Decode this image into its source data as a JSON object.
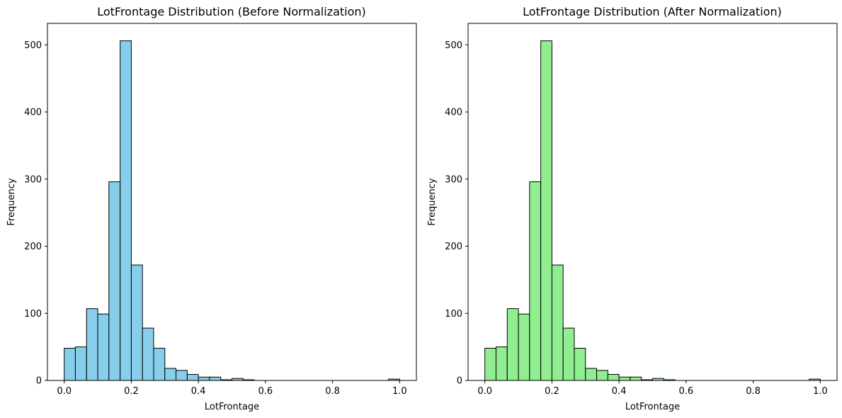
{
  "chart_data": [
    {
      "type": "bar",
      "title": "LotFrontage Distribution (Before Normalization)",
      "xlabel": "LotFrontage",
      "ylabel": "Frequency",
      "xlim": [
        -0.05,
        1.05
      ],
      "ylim": [
        0,
        532
      ],
      "xticks": [
        0.0,
        0.2,
        0.4,
        0.6,
        0.8,
        1.0
      ],
      "xtick_labels": [
        "0.0",
        "0.2",
        "0.4",
        "0.6",
        "0.8",
        "1.0"
      ],
      "yticks": [
        0,
        100,
        200,
        300,
        400,
        500
      ],
      "ytick_labels": [
        "0",
        "100",
        "200",
        "300",
        "400",
        "500"
      ],
      "bar_color": "#87ceeb",
      "edge_color": "#000000",
      "bins": {
        "x": [
          0.0,
          0.0333,
          0.0667,
          0.1,
          0.1333,
          0.1667,
          0.2,
          0.2333,
          0.2667,
          0.3,
          0.3333,
          0.3667,
          0.4,
          0.4333,
          0.4667,
          0.5,
          0.5333,
          0.5667,
          0.6,
          0.6333,
          0.6667,
          0.7,
          0.7333,
          0.7667,
          0.8,
          0.8333,
          0.8667,
          0.9,
          0.9333,
          0.9667
        ],
        "values": [
          48,
          50,
          107,
          99,
          296,
          506,
          172,
          78,
          48,
          18,
          15,
          9,
          5,
          5,
          1,
          3,
          1,
          0,
          0,
          0,
          0,
          0,
          0,
          0,
          0,
          0,
          0,
          0,
          0,
          2
        ],
        "width": 0.0333
      }
    },
    {
      "type": "bar",
      "title": "LotFrontage Distribution (After Normalization)",
      "xlabel": "LotFrontage",
      "ylabel": "Frequency",
      "xlim": [
        -0.05,
        1.05
      ],
      "ylim": [
        0,
        532
      ],
      "xticks": [
        0.0,
        0.2,
        0.4,
        0.6,
        0.8,
        1.0
      ],
      "xtick_labels": [
        "0.0",
        "0.2",
        "0.4",
        "0.6",
        "0.8",
        "1.0"
      ],
      "yticks": [
        0,
        100,
        200,
        300,
        400,
        500
      ],
      "ytick_labels": [
        "0",
        "100",
        "200",
        "300",
        "400",
        "500"
      ],
      "bar_color": "#90ee90",
      "edge_color": "#000000",
      "bins": {
        "x": [
          0.0,
          0.0333,
          0.0667,
          0.1,
          0.1333,
          0.1667,
          0.2,
          0.2333,
          0.2667,
          0.3,
          0.3333,
          0.3667,
          0.4,
          0.4333,
          0.4667,
          0.5,
          0.5333,
          0.5667,
          0.6,
          0.6333,
          0.6667,
          0.7,
          0.7333,
          0.7667,
          0.8,
          0.8333,
          0.8667,
          0.9,
          0.9333,
          0.9667
        ],
        "values": [
          48,
          50,
          107,
          99,
          296,
          506,
          172,
          78,
          48,
          18,
          15,
          9,
          5,
          5,
          1,
          3,
          1,
          0,
          0,
          0,
          0,
          0,
          0,
          0,
          0,
          0,
          0,
          0,
          0,
          2
        ],
        "width": 0.0333
      }
    }
  ]
}
